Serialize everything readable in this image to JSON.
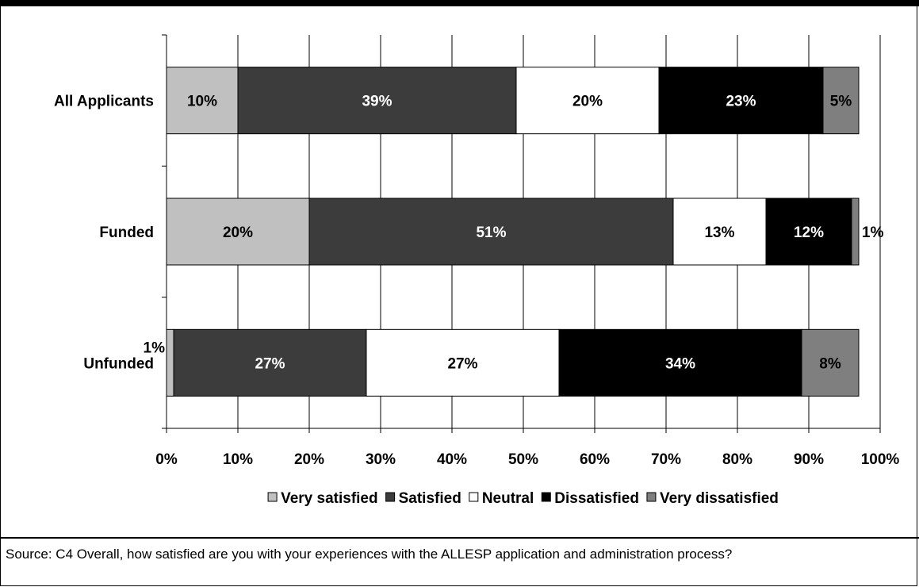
{
  "chart_data": {
    "type": "bar",
    "orientation": "horizontal",
    "stacked": true,
    "categories": [
      "All Applicants",
      "Funded",
      "Unfunded"
    ],
    "series": [
      {
        "name": "Very satisfied",
        "values": [
          10,
          20,
          1
        ],
        "labels": [
          "10%",
          "20%",
          "1%"
        ],
        "color": "#c0c0c0",
        "label_color": "#000000"
      },
      {
        "name": "Satisfied",
        "values": [
          39,
          51,
          27
        ],
        "labels": [
          "39%",
          "51%",
          "27%"
        ],
        "color": "#3c3c3c",
        "label_color": "#ffffff"
      },
      {
        "name": "Neutral",
        "values": [
          20,
          13,
          27
        ],
        "labels": [
          "20%",
          "13%",
          "27%"
        ],
        "color": "#ffffff",
        "label_color": "#000000"
      },
      {
        "name": "Dissatisfied",
        "values": [
          23,
          12,
          34
        ],
        "labels": [
          "23%",
          "12%",
          "34%"
        ],
        "color": "#000000",
        "label_color": "#ffffff"
      },
      {
        "name": "Very dissatisfied",
        "values": [
          5,
          1,
          8
        ],
        "labels": [
          "5%",
          "1%",
          "8%"
        ],
        "color": "#7f7f7f",
        "label_color": "#000000"
      }
    ],
    "x_ticks": [
      "0%",
      "10%",
      "20%",
      "30%",
      "40%",
      "50%",
      "60%",
      "70%",
      "80%",
      "90%",
      "100%"
    ],
    "xlim": [
      0,
      100
    ],
    "grid": true,
    "legend_position": "bottom"
  },
  "source": "Source:  C4 Overall, how satisfied are you with your experiences with the ALLESP application and administration process?"
}
